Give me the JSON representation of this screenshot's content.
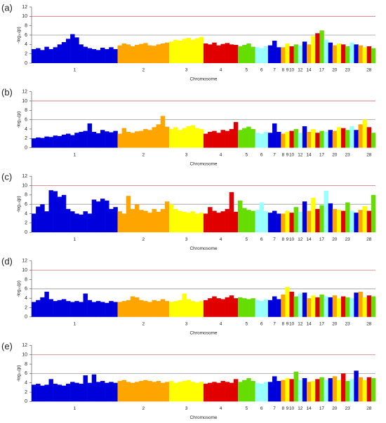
{
  "chart_data": [
    {
      "type": "manhattan",
      "panel_label": "(a)",
      "y_label": "-log₁₀(p)",
      "x_label": "Chromosome",
      "ylim": [
        0,
        12
      ],
      "yticks": [
        0,
        2,
        4,
        6,
        8,
        10,
        12
      ],
      "threshold_lines": [
        {
          "value": 6,
          "color": "#9a9a9a"
        },
        {
          "value": 10,
          "color": "#d07070"
        }
      ],
      "colors": [
        "#0000dd",
        "#ffa500",
        "#ffff00",
        "#e00000",
        "#66dd00",
        "#99ffff"
      ],
      "categories": [
        "1",
        "2",
        "3",
        "4",
        "5",
        "6",
        "7",
        "8",
        "9",
        "10",
        null,
        "12",
        null,
        "14",
        null,
        null,
        "17",
        null,
        null,
        "20",
        null,
        null,
        "23",
        null,
        null,
        null,
        null,
        "28",
        null
      ],
      "values": [
        [
          3,
          3.2,
          2.8,
          3.5,
          3,
          3.4,
          4,
          4.5,
          5.2,
          6.2,
          5.5,
          4,
          3.5,
          3.2,
          3,
          2.8,
          3.3,
          3,
          3.4,
          3
        ],
        [
          3.8,
          4.2,
          4,
          3.6,
          3.9,
          4.1,
          4.3,
          3.8,
          3.7,
          4,
          4.2,
          4.4
        ],
        [
          4.6,
          5,
          4.8,
          5.2,
          5.4,
          5,
          5.3,
          5.6
        ],
        [
          4.2,
          4,
          4.4,
          3.8,
          4.1,
          4.3,
          4,
          3.9
        ],
        [
          3.6,
          3.9,
          4.2,
          3.5
        ],
        [
          3.4,
          3.2,
          3.6
        ],
        [
          3.8,
          4.8,
          3.4
        ],
        [
          3.4
        ],
        [
          4.2
        ],
        [
          3.6
        ],
        [
          4
        ],
        [
          3.8
        ],
        [
          4.6
        ],
        [
          4
        ],
        [
          5.8
        ],
        [
          6.4
        ],
        [
          7
        ],
        [
          5
        ],
        [
          4.4
        ],
        [
          3.8
        ],
        [
          4.2
        ],
        [
          4
        ],
        [
          3.6
        ],
        [
          4.4
        ],
        [
          4
        ],
        [
          3.8
        ],
        [
          3.4
        ],
        [
          3.6
        ],
        [
          3.2
        ]
      ]
    },
    {
      "type": "manhattan",
      "panel_label": "(b)",
      "y_label": "-log₁₀(p)",
      "x_label": "Chromosome",
      "ylim": [
        0,
        12
      ],
      "yticks": [
        0,
        2,
        4,
        6,
        8,
        10,
        12
      ],
      "threshold_lines": [
        {
          "value": 6,
          "color": "#9a9a9a"
        },
        {
          "value": 10,
          "color": "#d07070"
        }
      ],
      "colors": [
        "#0000dd",
        "#ffa500",
        "#ffff00",
        "#e00000",
        "#66dd00",
        "#99ffff"
      ],
      "categories": [
        "1",
        "2",
        "3",
        "4",
        "5",
        "6",
        "7",
        "8",
        "9",
        "10",
        null,
        "12",
        null,
        "14",
        null,
        null,
        "17",
        null,
        null,
        "20",
        null,
        null,
        "23",
        null,
        null,
        null,
        null,
        "28",
        null
      ],
      "values": [
        [
          2,
          2.2,
          2.1,
          2.4,
          2.3,
          2.6,
          2.5,
          2.8,
          3,
          2.7,
          3.2,
          3.4,
          3.6,
          5.2,
          3.4,
          3.1,
          3.8,
          3.5,
          3.3,
          3.6
        ],
        [
          3,
          4.2,
          3.4,
          3.2,
          3.5,
          3.6,
          4,
          3.8,
          4.4,
          5,
          6.8,
          4.5
        ],
        [
          4,
          4.4,
          3.8,
          4.2,
          4.6,
          4.8,
          4.2,
          4
        ],
        [
          3,
          3.4,
          3.6,
          3.2,
          3.8,
          3.6,
          4,
          5.5
        ],
        [
          3.8,
          4.2,
          4.5,
          4
        ],
        [
          3.2,
          3,
          3.4
        ],
        [
          3.2,
          5.2,
          3.4
        ],
        [
          3
        ],
        [
          3.4
        ],
        [
          3.6
        ],
        [
          4
        ],
        [
          3.2
        ],
        [
          4.6
        ],
        [
          3.4
        ],
        [
          4
        ],
        [
          3.2
        ],
        [
          3.6
        ],
        [
          3.4
        ],
        [
          3.8
        ],
        [
          3.6
        ],
        [
          4.4
        ],
        [
          4.2
        ],
        [
          3.8
        ],
        [
          4.6
        ],
        [
          3.8
        ],
        [
          5
        ],
        [
          6
        ],
        [
          4.4
        ],
        [
          3.2
        ]
      ]
    },
    {
      "type": "manhattan",
      "panel_label": "(c)",
      "y_label": "-log₁₀(p)",
      "x_label": "Chromosome",
      "ylim": [
        0,
        12
      ],
      "yticks": [
        0,
        2,
        4,
        6,
        8,
        10,
        12
      ],
      "threshold_lines": [
        {
          "value": 6,
          "color": "#9a9a9a"
        },
        {
          "value": 10,
          "color": "#d07070"
        }
      ],
      "colors": [
        "#0000dd",
        "#ffa500",
        "#ffff00",
        "#e00000",
        "#66dd00",
        "#99ffff"
      ],
      "categories": [
        "1",
        "2",
        "3",
        "4",
        "5",
        "6",
        "7",
        "8",
        "9",
        "10",
        null,
        "12",
        null,
        "14",
        null,
        null,
        "17",
        null,
        null,
        "20",
        null,
        null,
        "23",
        null,
        null,
        null,
        null,
        "28",
        null
      ],
      "values": [
        [
          4,
          5.5,
          6,
          4.5,
          9,
          8.8,
          7.6,
          8,
          5,
          4.5,
          4,
          3.8,
          4.5,
          4,
          7,
          6.6,
          7.2,
          6.8,
          5,
          5.4
        ],
        [
          4.5,
          4,
          7.8,
          5,
          6,
          4.8,
          4.6,
          4.2,
          5,
          4.4,
          5,
          6.6
        ],
        [
          6,
          5,
          4.6,
          4.4,
          4.2,
          4.5,
          4,
          4.2
        ],
        [
          4,
          5.4,
          4.6,
          4.2,
          4.5,
          5,
          8.6,
          4.4
        ],
        [
          6.8,
          5.2,
          4.8,
          4.6
        ],
        [
          4.8,
          6.4,
          4.5
        ],
        [
          4.2,
          4.6,
          4
        ],
        [
          4
        ],
        [
          4.6
        ],
        [
          4.2
        ],
        [
          5.4
        ],
        [
          4.4
        ],
        [
          6.6
        ],
        [
          4.6
        ],
        [
          7.4
        ],
        [
          5
        ],
        [
          5.8
        ],
        [
          8.9
        ],
        [
          6.2
        ],
        [
          5
        ],
        [
          4.8
        ],
        [
          4.6
        ],
        [
          6.4
        ],
        [
          4.6
        ],
        [
          4.2
        ],
        [
          4.8
        ],
        [
          5.6
        ],
        [
          4.6
        ],
        [
          8
        ]
      ]
    },
    {
      "type": "manhattan",
      "panel_label": "(d)",
      "y_label": "-log₁₀(p)",
      "x_label": "Chromosome",
      "ylim": [
        0,
        12
      ],
      "yticks": [
        0,
        2,
        4,
        6,
        8,
        10,
        12
      ],
      "threshold_lines": [
        {
          "value": 6,
          "color": "#9a9a9a"
        },
        {
          "value": 10,
          "color": "#d07070"
        }
      ],
      "colors": [
        "#0000dd",
        "#ffa500",
        "#ffff00",
        "#e00000",
        "#66dd00",
        "#99ffff"
      ],
      "categories": [
        "1",
        "2",
        "3",
        "4",
        "5",
        "6",
        "7",
        "8",
        "9",
        "10",
        null,
        "12",
        null,
        "14",
        null,
        null,
        "17",
        null,
        null,
        "20",
        null,
        null,
        "23",
        null,
        null,
        null,
        null,
        "28",
        null
      ],
      "values": [
        [
          3.2,
          3.6,
          4.2,
          5.4,
          3.8,
          3.4,
          3.6,
          3.8,
          3.4,
          3.2,
          3.4,
          3.2,
          5,
          3.6,
          3.2,
          3.4,
          3.2,
          3,
          3.4,
          3.2
        ],
        [
          3.2,
          3.4,
          3.6,
          4.4,
          4.2,
          3.6,
          3.4,
          3.2,
          3.6,
          3.4,
          3.8,
          3.4
        ],
        [
          3.2,
          3.4,
          3.6,
          5,
          3.8,
          3.4,
          3.2,
          3.4
        ],
        [
          3.6,
          4,
          4.4,
          4,
          3.8,
          4.2,
          4.6,
          4
        ],
        [
          4.2,
          4,
          3.8,
          4
        ],
        [
          3.6,
          3.4,
          3.8
        ],
        [
          3.6,
          4.4,
          3.8
        ],
        [
          4.8
        ],
        [
          6.4
        ],
        [
          5.4
        ],
        [
          4.4
        ],
        [
          5
        ],
        [
          5.2
        ],
        [
          4
        ],
        [
          4.6
        ],
        [
          4.2
        ],
        [
          4.8
        ],
        [
          4.4
        ],
        [
          4.2
        ],
        [
          4.6
        ],
        [
          4
        ],
        [
          4.4
        ],
        [
          4.2
        ],
        [
          4
        ],
        [
          5.2
        ],
        [
          5.4
        ],
        [
          4.2
        ],
        [
          4.6
        ],
        [
          4.4
        ]
      ]
    },
    {
      "type": "manhattan",
      "panel_label": "(e)",
      "y_label": "-log₁₀(p)",
      "x_label": "Chromosome",
      "ylim": [
        0,
        12
      ],
      "yticks": [
        0,
        2,
        4,
        6,
        8,
        10,
        12
      ],
      "threshold_lines": [
        {
          "value": 6,
          "color": "#9a9a9a"
        },
        {
          "value": 10,
          "color": "#d07070"
        }
      ],
      "colors": [
        "#0000dd",
        "#ffa500",
        "#ffff00",
        "#e00000",
        "#66dd00",
        "#99ffff"
      ],
      "categories": [
        "1",
        "2",
        "3",
        "4",
        "5",
        "6",
        "7",
        "8",
        "9",
        "10",
        null,
        "12",
        null,
        "14",
        null,
        null,
        "17",
        null,
        null,
        "20",
        null,
        null,
        "23",
        null,
        null,
        null,
        null,
        "28",
        null
      ],
      "values": [
        [
          3.6,
          3.8,
          3.4,
          3.6,
          4.8,
          3.8,
          3.6,
          3.4,
          3.8,
          4.2,
          4,
          3.8,
          5.6,
          4,
          5.8,
          4.2,
          4.4,
          4,
          4.2,
          4
        ],
        [
          4.4,
          4.6,
          4.2,
          4,
          4.2,
          4.4,
          4.6,
          4.4,
          4.2,
          4.4,
          4,
          4.2
        ],
        [
          4.4,
          4,
          4.2,
          4.4,
          4.6,
          4.2,
          4,
          4.2
        ],
        [
          3.8,
          4,
          4.2,
          4,
          4.4,
          4.2,
          4,
          4.8
        ],
        [
          4.2,
          4.6,
          5,
          4.4
        ],
        [
          4,
          3.8,
          4.2
        ],
        [
          4.2,
          5.4,
          4.4
        ],
        [
          4.6
        ],
        [
          5
        ],
        [
          4.8
        ],
        [
          6.4
        ],
        [
          4.6
        ],
        [
          5
        ],
        [
          4.2
        ],
        [
          4.4
        ],
        [
          4.8
        ],
        [
          5.2
        ],
        [
          4.6
        ],
        [
          5
        ],
        [
          5.4
        ],
        [
          4.6
        ],
        [
          6
        ],
        [
          4.4
        ],
        [
          4.8
        ],
        [
          6.6
        ],
        [
          5.2
        ],
        [
          4.6
        ],
        [
          5.2
        ],
        [
          5
        ]
      ]
    }
  ]
}
